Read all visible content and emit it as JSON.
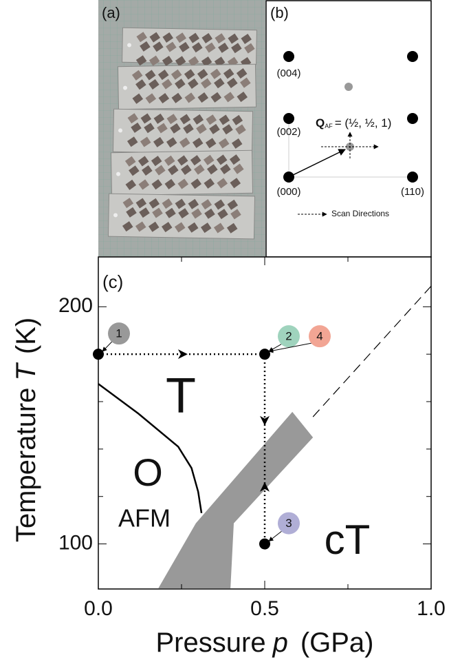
{
  "panel_a": {
    "label": "(a)"
  },
  "panel_b": {
    "label": "(b)",
    "reflections": [
      "(004)",
      "(002)",
      "(000)",
      "(110)"
    ],
    "q_symbol": "Q",
    "q_subscript": "AF",
    "q_value": "= (½, ½, 1)",
    "legend": "Scan Directions"
  },
  "chart_data": {
    "type": "phase-diagram",
    "panel_label": "(c)",
    "x_label": "Pressure",
    "x_symbol": "p",
    "x_unit": "(GPa)",
    "y_label": "Temperature",
    "y_symbol": "T",
    "y_unit": "(K)",
    "xlim": [
      0,
      1
    ],
    "ylim": [
      81,
      221
    ],
    "xticks": [
      {
        "value": 0,
        "label": "0.0"
      },
      0.5,
      {
        "value": 1,
        "label": "1.0"
      }
    ],
    "yticks": [
      100,
      200
    ],
    "minor_xticks": [
      0.25,
      0.75
    ],
    "minor_yticks": [
      120,
      140,
      160,
      180
    ],
    "boundary": {
      "x": [
        0,
        0.12,
        0.24,
        0.28,
        0.3,
        0.31
      ],
      "y": [
        167.5,
        155,
        141,
        132,
        122,
        113
      ],
      "color": "#000000"
    },
    "crossover": {
      "x": [
        0.645,
        1
      ],
      "y": [
        153.6,
        208.7
      ],
      "color": "#000000"
    },
    "region": {
      "x": [
        0.18,
        0.293,
        0.583,
        0.645,
        0.407,
        0.397
      ],
      "y": [
        81.2,
        108.7,
        155.7,
        144.9,
        108.7,
        81.2
      ],
      "color": "#999999"
    },
    "points": [
      {
        "x": 0,
        "y": 180,
        "labels": [
          {
            "text": "1",
            "color": "#999999"
          }
        ]
      },
      {
        "x": 0.5,
        "y": 180,
        "labels": [
          {
            "text": "2",
            "color": "#9fd3bd"
          },
          {
            "text": "4",
            "color": "#f2a594"
          }
        ]
      },
      {
        "x": 0.5,
        "y": 100,
        "labels": [
          {
            "text": "3",
            "color": "#b0aed6"
          }
        ]
      }
    ],
    "phases": [
      "T",
      "O",
      "AFM",
      "cT"
    ]
  }
}
